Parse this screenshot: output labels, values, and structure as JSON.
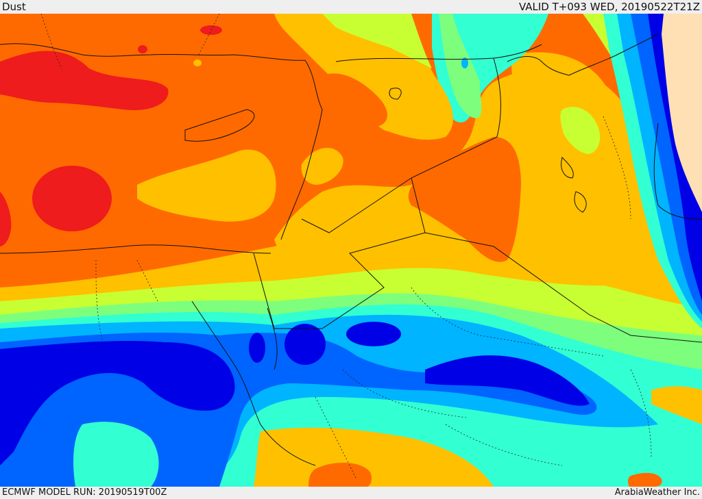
{
  "header": {
    "field": "Dust",
    "valid": "VALID T+093 WED, 20190522T21Z"
  },
  "footer": {
    "run": "ECMWF MODEL RUN: 20190519T00Z",
    "credit": "ArabiaWeather Inc."
  },
  "palette": {
    "very_high": "#ee1c1c",
    "high": "#ff6a00",
    "med_high": "#ffc000",
    "medium": "#c8ff32",
    "med_low": "#7dff7d",
    "low": "#32ffd2",
    "very_low": "#00b4ff",
    "lower": "#0064ff",
    "lowest": "#0000e6",
    "none": "#ffe0b4"
  }
}
